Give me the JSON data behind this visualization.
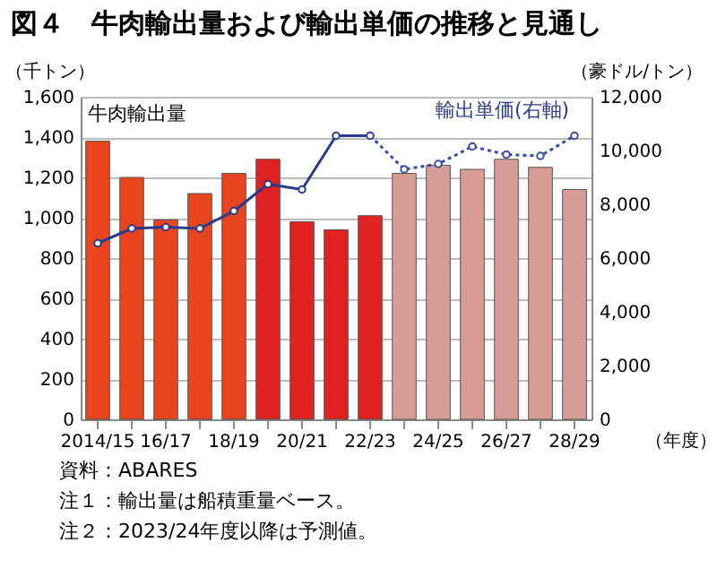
{
  "chart_data": {
    "type": "bar",
    "title": "図４　牛肉輸出量および輸出単価の推移と見通し",
    "ylabel": "（千トン）",
    "y2label": "（豪ドル/トン）",
    "xlabel": "（年度）",
    "categories": [
      "2014/15",
      null,
      "16/17",
      null,
      "18/19",
      null,
      "20/21",
      null,
      "22/23",
      null,
      "24/25",
      null,
      "26/27",
      null,
      "28/29"
    ],
    "series": [
      {
        "name": "牛肉輸出量",
        "colors": [
          "#e8441e",
          "#e8441e",
          "#e8441e",
          "#e8441e",
          "#e8441e",
          "#e02222",
          "#e02222",
          "#e02222",
          "#e02222",
          "#d89c96",
          "#d89c96",
          "#d89c96",
          "#d89c96",
          "#d89c96",
          "#d89c96"
        ],
        "values": [
          1380,
          1200,
          990,
          1120,
          1220,
          1290,
          980,
          940,
          1010,
          1220,
          1260,
          1240,
          1290,
          1250,
          1140
        ]
      },
      {
        "name": "輸出単価(右軸)",
        "type": "line",
        "axis": "y2",
        "color": "#2b3a8c",
        "marker": "circle",
        "line_style": "solid",
        "values": [
          6550,
          7100,
          7150,
          7100,
          7750,
          8750,
          8550,
          10550,
          10550,
          null,
          null,
          null,
          null,
          null,
          null
        ]
      },
      {
        "type": "line",
        "axis": "y2",
        "color": "#3a4aa8",
        "marker": "circle",
        "line_style": "dotted",
        "values": [
          null,
          null,
          null,
          null,
          null,
          null,
          null,
          null,
          10550,
          9300,
          9500,
          10150,
          9850,
          9800,
          10550
        ]
      }
    ],
    "ylim": [
      0,
      1600
    ],
    "yticks": [
      0,
      200,
      400,
      600,
      800,
      {
        "value": 1000,
        "label": "1,000"
      },
      {
        "value": 1200,
        "label": "1,200"
      },
      {
        "value": 1400,
        "label": "1,400"
      },
      {
        "value": 1600,
        "label": "1,600"
      }
    ],
    "y2lim": [
      0,
      12000
    ],
    "y2ticks": [
      0,
      {
        "value": 2000,
        "label": "2,000"
      },
      {
        "value": 4000,
        "label": "4,000"
      },
      {
        "value": 6000,
        "label": "6,000"
      },
      {
        "value": 8000,
        "label": "8,000"
      },
      {
        "value": 10000,
        "label": "10,000"
      },
      {
        "value": 12000,
        "label": "12,000"
      }
    ],
    "grid": "y",
    "legend": false,
    "annotations": [
      "資料：ABARES",
      "注１：輸出量は船積重量ベース。",
      "注２：2023/24年度以降は予測値。"
    ]
  }
}
